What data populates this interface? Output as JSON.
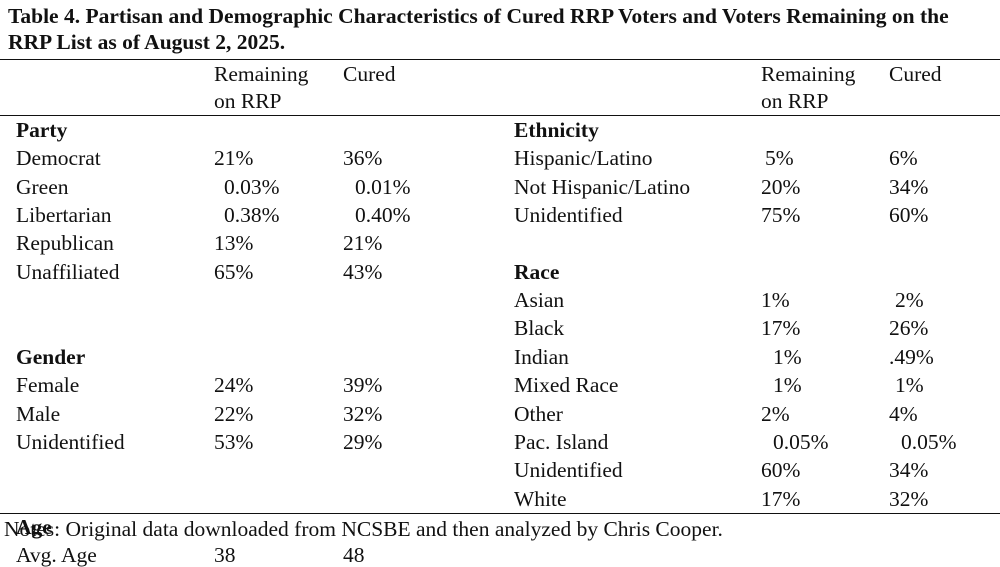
{
  "title": "Table 4. Partisan and Demographic Characteristics of Cured RRP Voters and Voters Remaining on the RRP List as of August 2, 2025.",
  "headers": {
    "remaining_line1": "Remaining",
    "remaining_line2": "on RRP",
    "cured": "Cured"
  },
  "left_sections": [
    {
      "name": "Party",
      "rows": [
        {
          "label": "Democrat",
          "remaining": "21%",
          "cured": "36%"
        },
        {
          "label": "Green",
          "remaining": "0.03%",
          "cured": "0.01%"
        },
        {
          "label": "Libertarian",
          "remaining": "0.38%",
          "cured": "0.40%"
        },
        {
          "label": "Republican",
          "remaining": "13%",
          "cured": "21%"
        },
        {
          "label": "Unaffiliated",
          "remaining": "65%",
          "cured": "43%"
        }
      ]
    },
    {
      "name": "Gender",
      "rows": [
        {
          "label": "Female",
          "remaining": "24%",
          "cured": "39%"
        },
        {
          "label": "Male",
          "remaining": "22%",
          "cured": "32%"
        },
        {
          "label": "Unidentified",
          "remaining": "53%",
          "cured": "29%"
        }
      ]
    },
    {
      "name": "Age",
      "rows": [
        {
          "label": "Avg. Age",
          "remaining": "38",
          "cured": "48"
        }
      ]
    }
  ],
  "right_sections": [
    {
      "name": "Ethnicity",
      "rows": [
        {
          "label": "Hispanic/Latino",
          "remaining": "5%",
          "cured": "6%"
        },
        {
          "label": "Not Hispanic/Latino",
          "remaining": "20%",
          "cured": "34%"
        },
        {
          "label": "Unidentified",
          "remaining": "75%",
          "cured": "60%"
        }
      ]
    },
    {
      "name": "Race",
      "rows": [
        {
          "label": "Asian",
          "remaining": "1%",
          "cured": "2%"
        },
        {
          "label": "Black",
          "remaining": "17%",
          "cured": "26%"
        },
        {
          "label": "Indian",
          "remaining": "1%",
          "cured": ".49%"
        },
        {
          "label": "Mixed Race",
          "remaining": "1%",
          "cured": "1%"
        },
        {
          "label": "Other",
          "remaining": "2%",
          "cured": "4%"
        },
        {
          "label": "Pac. Island",
          "remaining": "0.05%",
          "cured": "0.05%"
        },
        {
          "label": "Unidentified",
          "remaining": "60%",
          "cured": "34%"
        },
        {
          "label": "White",
          "remaining": "17%",
          "cured": "32%"
        }
      ]
    }
  ],
  "notes": "Notes: Original data downloaded from NCSBE and then analyzed by Chris Cooper."
}
